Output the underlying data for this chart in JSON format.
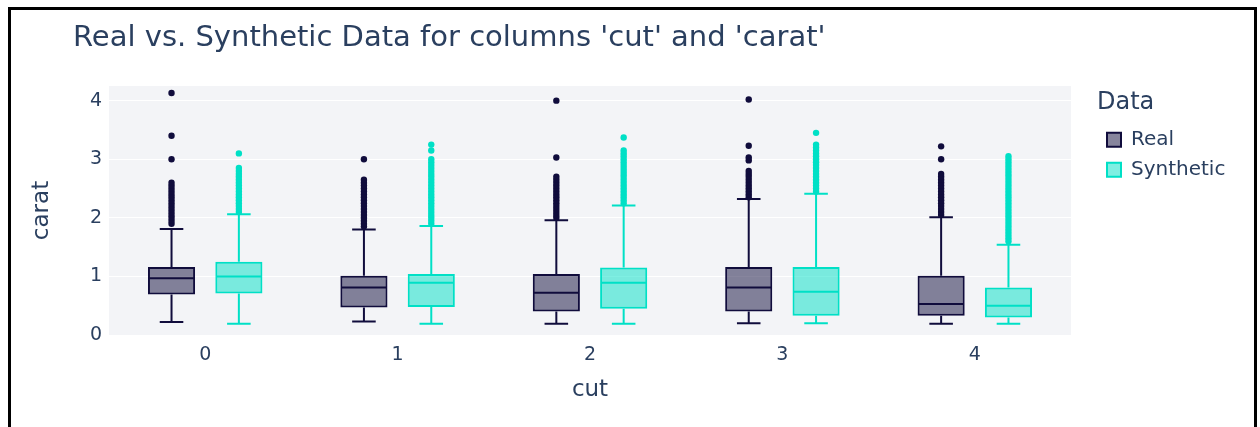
{
  "chart_data": {
    "type": "box",
    "title": "Real vs. Synthetic Data for columns 'cut' and 'carat'",
    "xlabel": "cut",
    "ylabel": "carat",
    "legend_title": "Data",
    "categories": [
      "0",
      "1",
      "2",
      "3",
      "4"
    ],
    "series": [
      {
        "name": "Real",
        "color": "#100c3c",
        "boxes": [
          {
            "low": 0.22,
            "q1": 0.69,
            "median": 0.97,
            "q3": 1.16,
            "high": 1.81,
            "outliers": [
              1.9,
              1.95,
              2.0,
              2.05,
              2.1,
              2.15,
              2.2,
              2.25,
              2.3,
              2.35,
              2.4,
              2.45,
              2.5,
              2.55,
              2.6,
              3.0,
              3.4,
              4.13
            ]
          },
          {
            "low": 0.23,
            "q1": 0.47,
            "median": 0.81,
            "q3": 1.01,
            "high": 1.8,
            "outliers": [
              1.85,
              1.9,
              1.95,
              2.0,
              2.05,
              2.1,
              2.15,
              2.2,
              2.25,
              2.3,
              2.35,
              2.4,
              2.45,
              2.5,
              2.55,
              2.6,
              2.65,
              3.0
            ]
          },
          {
            "low": 0.19,
            "q1": 0.4,
            "median": 0.72,
            "q3": 1.04,
            "high": 1.96,
            "outliers": [
              2.0,
              2.05,
              2.1,
              2.15,
              2.2,
              2.25,
              2.3,
              2.35,
              2.4,
              2.45,
              2.5,
              2.55,
              2.6,
              2.65,
              2.7,
              3.03,
              4.0
            ]
          },
          {
            "low": 0.2,
            "q1": 0.4,
            "median": 0.81,
            "q3": 1.16,
            "high": 2.32,
            "outliers": [
              2.35,
              2.4,
              2.45,
              2.5,
              2.55,
              2.6,
              2.65,
              2.7,
              2.75,
              2.8,
              2.98,
              3.03,
              3.23,
              4.02
            ]
          },
          {
            "low": 0.19,
            "q1": 0.33,
            "median": 0.53,
            "q3": 1.01,
            "high": 2.01,
            "outliers": [
              2.05,
              2.1,
              2.15,
              2.2,
              2.25,
              2.3,
              2.35,
              2.4,
              2.45,
              2.5,
              2.55,
              2.6,
              2.65,
              2.7,
              2.75,
              3.0,
              3.22
            ]
          }
        ]
      },
      {
        "name": "Synthetic",
        "color": "#00e0c6",
        "boxes": [
          {
            "low": 0.19,
            "q1": 0.71,
            "median": 1.0,
            "q3": 1.25,
            "high": 2.06,
            "outliers": [
              2.1,
              2.15,
              2.2,
              2.25,
              2.3,
              2.35,
              2.4,
              2.45,
              2.5,
              2.55,
              2.6,
              2.65,
              2.7,
              2.75,
              2.8,
              2.85,
              3.1
            ]
          },
          {
            "low": 0.19,
            "q1": 0.48,
            "median": 0.89,
            "q3": 1.04,
            "high": 1.86,
            "outliers": [
              1.9,
              1.95,
              2.0,
              2.05,
              2.1,
              2.15,
              2.2,
              2.25,
              2.3,
              2.35,
              2.4,
              2.45,
              2.5,
              2.55,
              2.6,
              2.65,
              2.7,
              2.75,
              2.8,
              2.85,
              2.9,
              2.95,
              3.0,
              3.15,
              3.25
            ]
          },
          {
            "low": 0.19,
            "q1": 0.45,
            "median": 0.89,
            "q3": 1.15,
            "high": 2.21,
            "outliers": [
              2.25,
              2.3,
              2.35,
              2.4,
              2.45,
              2.5,
              2.55,
              2.6,
              2.65,
              2.7,
              2.75,
              2.8,
              2.85,
              2.9,
              2.95,
              3.0,
              3.05,
              3.1,
              3.15,
              3.37
            ]
          },
          {
            "low": 0.2,
            "q1": 0.33,
            "median": 0.74,
            "q3": 1.16,
            "high": 2.41,
            "outliers": [
              2.45,
              2.5,
              2.55,
              2.6,
              2.65,
              2.7,
              2.75,
              2.8,
              2.85,
              2.9,
              2.95,
              3.0,
              3.05,
              3.1,
              3.15,
              3.2,
              3.25,
              3.45
            ]
          },
          {
            "low": 0.19,
            "q1": 0.3,
            "median": 0.5,
            "q3": 0.81,
            "high": 1.54,
            "outliers": [
              1.6,
              1.65,
              1.7,
              1.75,
              1.8,
              1.85,
              1.9,
              1.95,
              2.0,
              2.05,
              2.1,
              2.15,
              2.2,
              2.25,
              2.3,
              2.35,
              2.4,
              2.45,
              2.5,
              2.55,
              2.6,
              2.65,
              2.7,
              2.75,
              2.8,
              2.85,
              2.9,
              2.95,
              3.0,
              3.05
            ]
          }
        ]
      }
    ],
    "ylim": [
      0,
      4.25
    ],
    "yticks": [
      0,
      1,
      2,
      3,
      4
    ],
    "grid": "y",
    "legend": "top right",
    "marker": "circle"
  }
}
